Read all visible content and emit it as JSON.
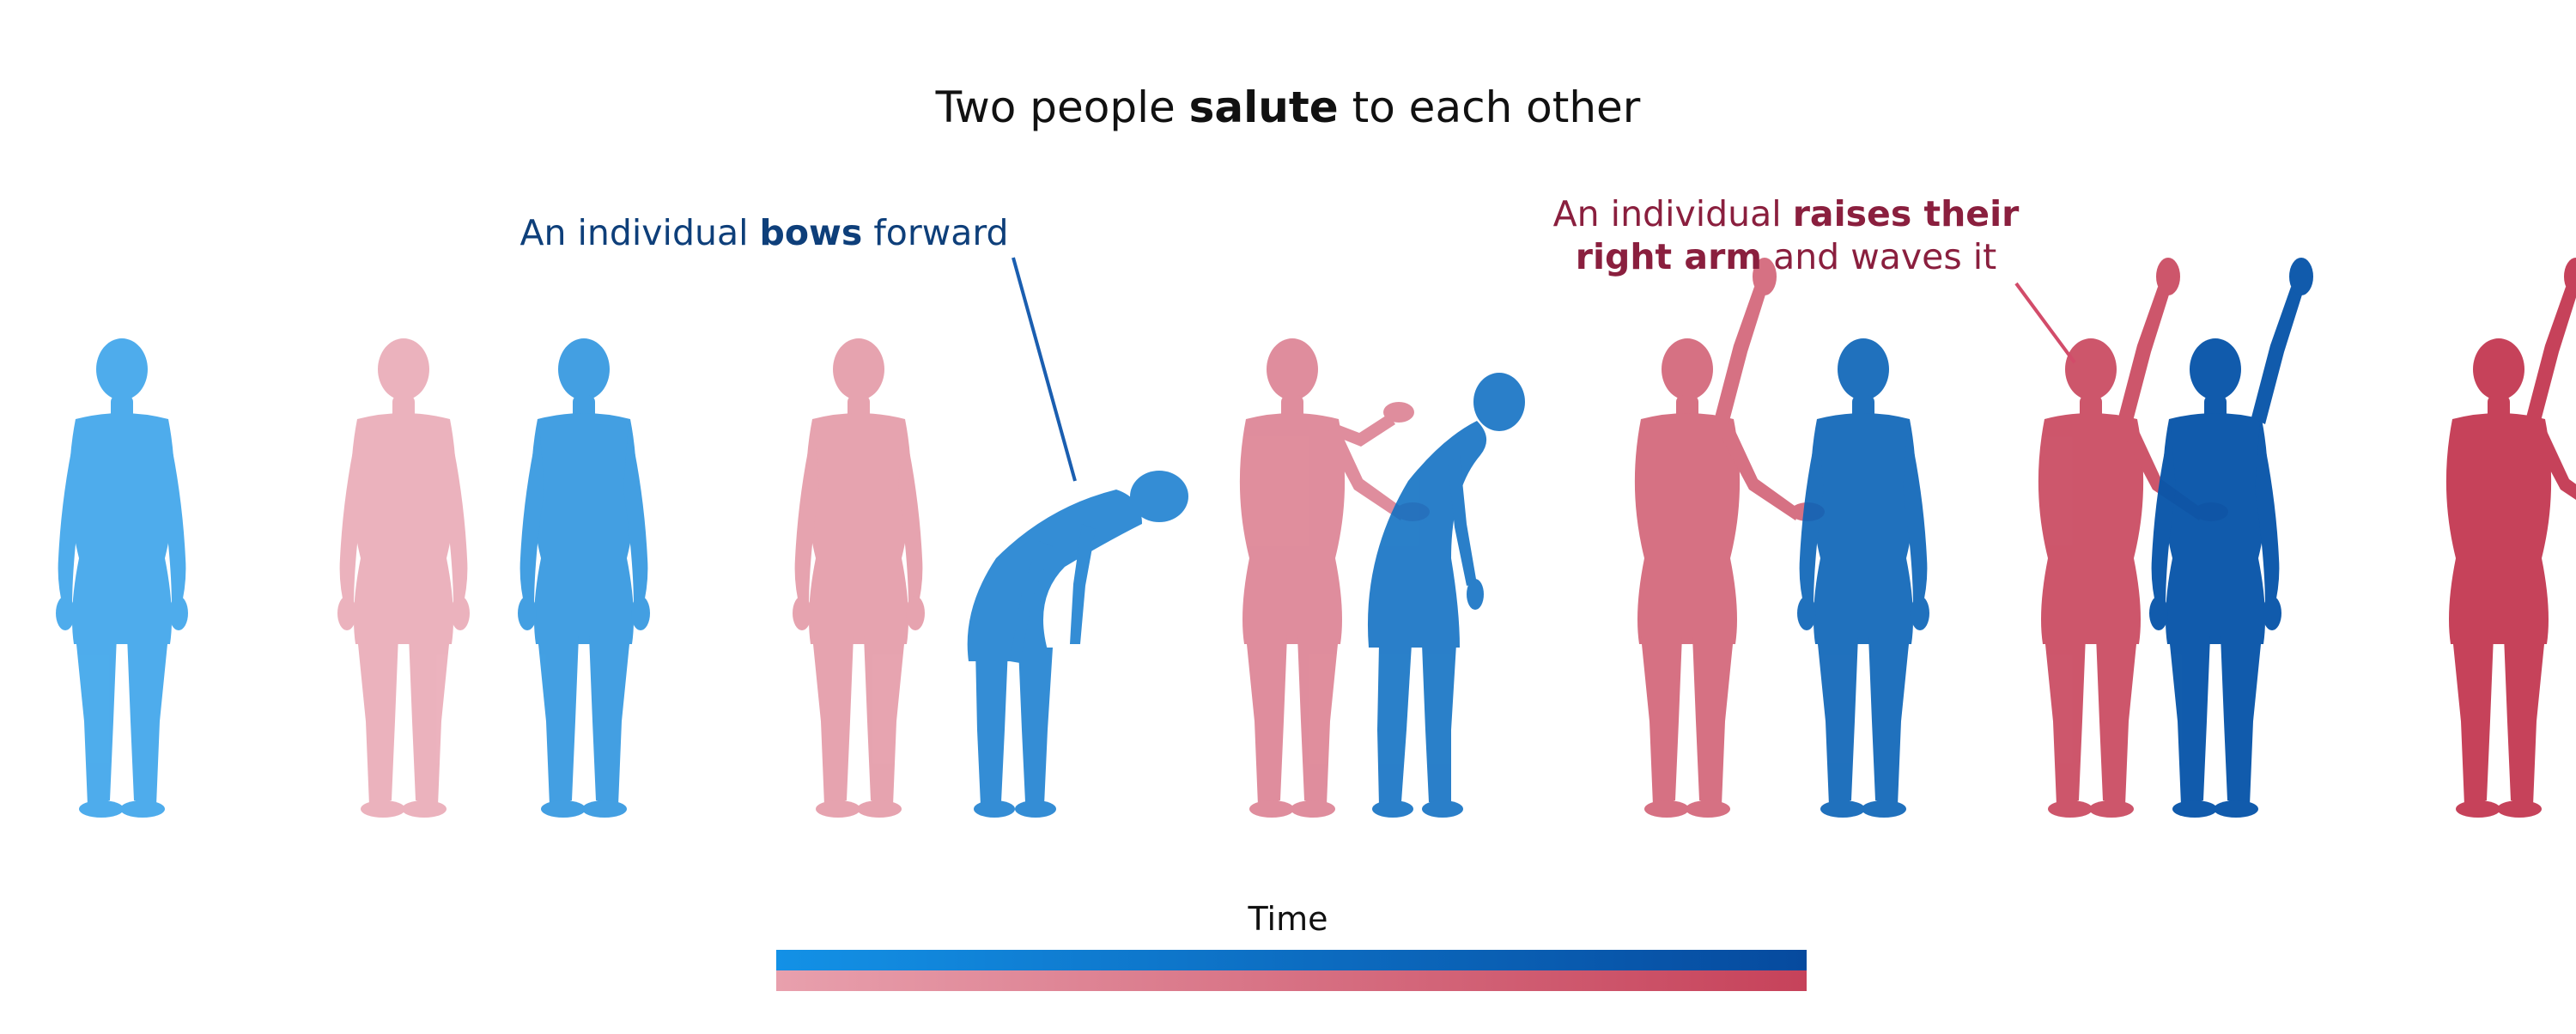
{
  "title": {
    "prefix": "Two people ",
    "bold": "salute",
    "suffix": " to each other"
  },
  "annotation_bow": {
    "prefix": "An individual ",
    "bold": "bows",
    "suffix": " forward"
  },
  "annotation_wave": {
    "line1_prefix": "An individual ",
    "line1_bold": "raises their",
    "line2_bold": "right arm",
    "line2_suffix": " and waves it"
  },
  "timeline": {
    "label": "Time"
  },
  "colors": {
    "blue_start": "#1391e6",
    "blue_end": "#064a9e",
    "red_start": "#e8a0ad",
    "red_end": "#c6425a",
    "annotation_blue": "#0e3f7a",
    "annotation_red": "#8a1f3e"
  },
  "figures": [
    {
      "person": "blue",
      "time": 0.0,
      "pose": "stand-front"
    },
    {
      "person": "red",
      "time": 0.05,
      "pose": "stand-side"
    },
    {
      "person": "blue",
      "time": 0.15,
      "pose": "stand-three-quarter"
    },
    {
      "person": "red",
      "time": 0.2,
      "pose": "stand-side"
    },
    {
      "person": "blue",
      "time": 0.35,
      "pose": "bow-deep"
    },
    {
      "person": "red",
      "time": 0.4,
      "pose": "raise-both-hands"
    },
    {
      "person": "blue",
      "time": 0.5,
      "pose": "bow-slight"
    },
    {
      "person": "red",
      "time": 0.65,
      "pose": "wave-right-arm"
    },
    {
      "person": "blue",
      "time": 0.65,
      "pose": "stand-side"
    },
    {
      "person": "red",
      "time": 0.85,
      "pose": "wave-right-arm"
    },
    {
      "person": "blue",
      "time": 0.85,
      "pose": "wave-behind"
    },
    {
      "person": "red",
      "time": 1.0,
      "pose": "wave-right-arm"
    }
  ]
}
